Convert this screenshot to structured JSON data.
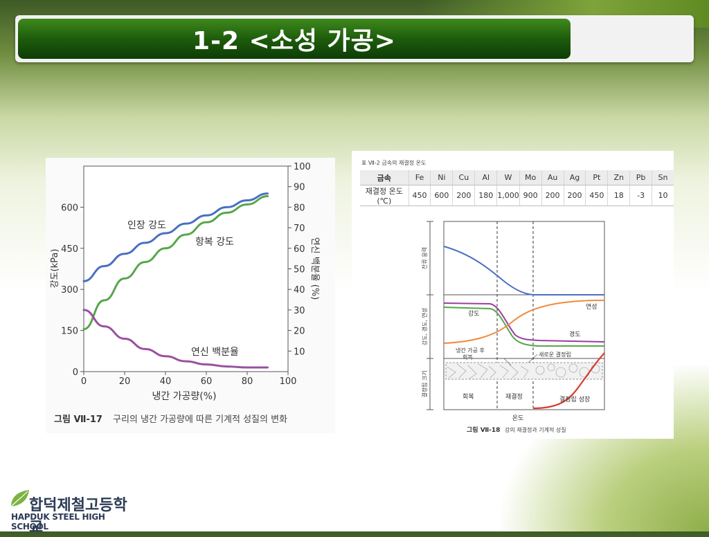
{
  "title": "1-2 <소성 가공>",
  "school": {
    "name_kr": "합덕제철고등학교",
    "name_en": "HAPDUK STEEL HIGH SCHOOL"
  },
  "figure_left": {
    "caption_prefix": "그림 Ⅶ-17",
    "caption_text": "구리의 냉간 가공량에 따른 기계적 성질의 변화",
    "chart_data": {
      "type": "line",
      "xlabel": "냉간 가공량(%)",
      "ylabel_left": "강도(kPa)",
      "ylabel_right": "연신 백분율 (%)",
      "xlim": [
        0,
        100
      ],
      "ylim_left": [
        0,
        750
      ],
      "ylim_right": [
        0,
        100
      ],
      "x_ticks": [
        0,
        20,
        40,
        60,
        80,
        100
      ],
      "y_left_ticks": [
        0,
        150,
        300,
        450,
        600
      ],
      "y_right_ticks": [
        10,
        20,
        30,
        40,
        50,
        60,
        70,
        80,
        90,
        100
      ],
      "series": [
        {
          "name": "인장 강도",
          "color": "#4a6fc2",
          "axis": "left",
          "x": [
            0,
            10,
            20,
            30,
            40,
            50,
            60,
            70,
            80,
            90
          ],
          "y": [
            330,
            385,
            430,
            470,
            505,
            540,
            570,
            600,
            625,
            650
          ]
        },
        {
          "name": "항복 강도",
          "color": "#56a64a",
          "axis": "left",
          "x": [
            0,
            10,
            20,
            30,
            40,
            50,
            60,
            70,
            80,
            90
          ],
          "y": [
            155,
            260,
            340,
            400,
            450,
            500,
            545,
            580,
            610,
            640
          ]
        },
        {
          "name": "연신 백분율",
          "color": "#9a4fa0",
          "axis": "right",
          "x": [
            0,
            10,
            20,
            30,
            40,
            50,
            60,
            70,
            80,
            90
          ],
          "y": [
            30,
            22,
            16,
            11,
            7.5,
            5,
            3.5,
            2.5,
            2,
            2
          ]
        }
      ]
    }
  },
  "figure_right": {
    "table_caption": "표 Ⅶ-2 금속의 재결정 온도",
    "table": {
      "header_label": "금속",
      "row_label": "재결정 온도(℃)",
      "metals": [
        "Fe",
        "Ni",
        "Cu",
        "Al",
        "W",
        "Mo",
        "Au",
        "Ag",
        "Pt",
        "Zn",
        "Pb",
        "Sn"
      ],
      "temps": [
        "450",
        "600",
        "200",
        "180",
        "1,000",
        "900",
        "200",
        "200",
        "450",
        "18",
        "-3",
        "10"
      ]
    },
    "diagram": {
      "caption_prefix": "그림 Ⅶ-18",
      "caption_text": "강의 재결정과 기계적 성질",
      "axis_x_label": "온도",
      "band_labels": [
        "잔류 응력",
        "강도, 경도, 연성",
        "결정립 크기"
      ],
      "curve_labels": {
        "strength": "강도",
        "ductility": "연성",
        "hardness": "경도"
      },
      "annotations": {
        "cold_worked": "냉간 가공 후",
        "recovery_small": "회복",
        "new_grains": "새로운 결정립"
      },
      "stages": [
        "회복",
        "재결정",
        "결정립 성장"
      ],
      "colors": {
        "residual": "#4a6fc2",
        "strength": "#56a64a",
        "hardness": "#9a3d9e",
        "ductility": "#ef8a3f",
        "grain": "#d93a2e"
      }
    }
  }
}
